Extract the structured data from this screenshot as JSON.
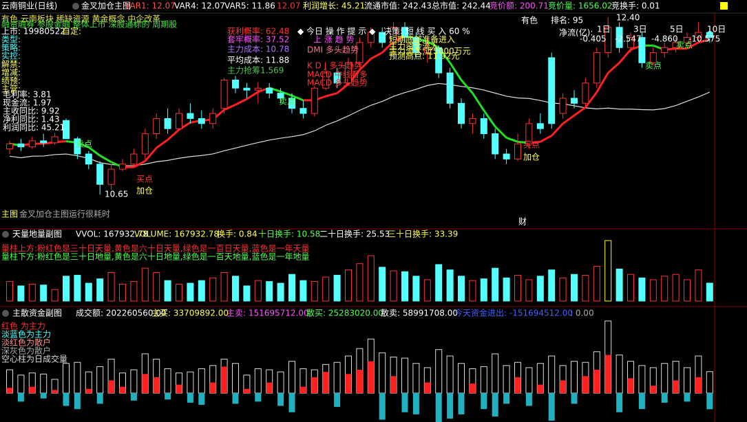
{
  "header": {
    "stock": "云南铜业(日线)",
    "indicator": "金叉加仓主图",
    "items": [
      "VAR1: 12.07",
      "VAR4: 12.07",
      "VAR5: 11.86",
      "12.07",
      "利润增长: 45.21",
      "流通市值: 242.43",
      "总市值: 242.44",
      "竞价额: 200.71",
      "竞价量: 1656.02",
      "竞换手: 0.01"
    ]
  },
  "main": {
    "tags": [
      "有色 云南板块 稀缺资源 黄金概念 中企改革",
      "融资融券 参股金融 整体上市 深股通标的 周期股"
    ],
    "info": [
      "上市: 19980522",
      "自定:",
      "类型:",
      "策略:",
      "实控:",
      "解禁:",
      "增减:",
      "绩预:",
      "主营:"
    ],
    "stats": [
      "毛利率: 3.81",
      "现金流: 1.97",
      "主收同比: 9.92",
      "净利同比: 1.43",
      "利润同比: 45.21"
    ],
    "probs": [
      "获利概率: 62.48",
      "套牢概率: 37.52",
      "主力成本: 10.78",
      "平均成本: 11.88",
      "主力抢筹1.569"
    ],
    "tip": "◆ 今日 操 作 提 示 ◆",
    "decision": "决策: 短 线 买 入 60 %",
    "signals": [
      "上 涨 趋 势",
      "DMI 多头趋势",
      "K D J 多头趋势",
      "MACD 中线看多",
      "MACD 多头趋势"
    ],
    "forecasts": [
      "短期底部准备进入",
      "主力资金流入",
      "主力流入:近5000万元",
      "预测高点: 11.92元"
    ],
    "sell": "卖点",
    "buy": "买点",
    "add": "加仓",
    "low_label": "10.65",
    "high_label": "12.40",
    "cai": "财",
    "note": "主图",
    "note_b": "金叉加仓主图运行很耗时",
    "sector": "有色",
    "rank": "排名: 95",
    "flow_title": "净流(亿):",
    "flow_periods": [
      "1日",
      "3日",
      "5日",
      "10日"
    ],
    "flow_values": [
      "-0.405",
      "-2.547",
      "-4.860",
      "-10.575"
    ]
  },
  "candles": {
    "open": [
      11.1,
      11.15,
      11.12,
      11.18,
      11.16,
      11.38,
      11.2,
      11.05,
      10.95,
      10.75,
      10.9,
      10.95,
      11.05,
      11.25,
      11.4,
      11.3,
      11.45,
      11.4,
      11.35,
      11.5,
      11.78,
      11.7,
      11.68,
      11.7,
      11.65,
      11.6,
      11.5,
      11.45,
      11.7,
      11.85,
      11.75,
      11.95,
      12.15,
      12.25,
      12.15,
      12.3,
      12.2,
      12.05,
      12.1,
      11.85,
      11.55,
      11.35,
      11.4,
      11.25,
      11.05,
      11.0,
      11.15,
      11.35,
      12.0,
      11.45,
      11.6,
      11.55,
      11.75,
      12.05,
      12.3,
      12.1,
      12.2,
      11.95,
      12.05,
      12.1,
      12.15,
      12.2,
      12.25
    ],
    "close": [
      11.15,
      11.12,
      11.18,
      11.16,
      11.22,
      11.2,
      11.05,
      10.95,
      10.75,
      10.9,
      10.95,
      11.05,
      11.25,
      11.4,
      11.3,
      11.45,
      11.4,
      11.35,
      11.45,
      11.78,
      11.7,
      11.68,
      11.7,
      11.65,
      11.6,
      11.5,
      11.45,
      11.7,
      11.85,
      11.75,
      11.95,
      12.15,
      12.25,
      12.15,
      12.3,
      12.2,
      12.05,
      12.1,
      11.85,
      11.55,
      11.35,
      11.4,
      11.25,
      11.05,
      11.0,
      11.15,
      11.35,
      11.3,
      11.35,
      11.6,
      11.55,
      11.75,
      12.05,
      12.3,
      12.1,
      12.2,
      11.95,
      12.05,
      12.1,
      12.15,
      12.2,
      12.25,
      12.2
    ],
    "high": [
      11.18,
      11.2,
      11.22,
      11.25,
      11.26,
      11.4,
      11.22,
      11.08,
      10.98,
      10.95,
      11.0,
      11.1,
      11.3,
      11.45,
      11.5,
      11.5,
      11.55,
      11.48,
      11.5,
      11.8,
      11.82,
      11.75,
      11.76,
      11.75,
      11.7,
      11.65,
      11.58,
      11.72,
      11.9,
      11.9,
      12.0,
      12.2,
      12.3,
      12.3,
      12.35,
      12.35,
      12.25,
      12.2,
      12.12,
      11.9,
      11.6,
      11.45,
      11.45,
      11.3,
      11.1,
      11.25,
      11.4,
      11.45,
      12.05,
      11.65,
      11.68,
      11.8,
      12.1,
      12.4,
      12.35,
      12.25,
      12.25,
      12.1,
      12.15,
      12.2,
      12.25,
      12.35,
      12.3
    ],
    "low": [
      11.05,
      11.08,
      11.1,
      11.12,
      11.14,
      11.2,
      11.0,
      10.9,
      10.65,
      10.7,
      10.88,
      10.92,
      11.0,
      11.2,
      11.25,
      11.28,
      11.35,
      11.3,
      11.3,
      11.45,
      11.65,
      11.6,
      11.55,
      11.6,
      11.55,
      11.45,
      11.4,
      11.42,
      11.68,
      11.7,
      11.72,
      11.9,
      12.1,
      12.1,
      12.1,
      12.15,
      12.0,
      11.95,
      11.8,
      11.5,
      11.3,
      11.25,
      11.2,
      11.0,
      10.95,
      10.98,
      11.1,
      11.25,
      11.3,
      11.4,
      11.5,
      11.5,
      11.7,
      12.0,
      12.05,
      12.05,
      11.9,
      11.92,
      12.0,
      12.05,
      12.1,
      12.15,
      12.15
    ]
  },
  "volume": {
    "title": "天量地量副图",
    "items": [
      "VVOL: 167932.78",
      "VOLUME: 167932.78",
      "换手: 0.84",
      "十日换手: 10.58",
      "二十日换手: 25.53",
      "三十日换手: 33.39"
    ],
    "legend": [
      "量柱上方:粉红色是三十日天量,黄色是六十日天量,绿色是一百日天量,蓝色是一年天量",
      "量柱下方:粉红色是三十日地量,黄色是六十日地量,绿色是一百天地量,蓝色是一年地量"
    ],
    "values": [
      183000,
      142000,
      158000,
      150000,
      108000,
      233000,
      242000,
      167000,
      208000,
      267000,
      158000,
      183000,
      308000,
      267000,
      192000,
      158000,
      167000,
      192000,
      217000,
      267000,
      233000,
      142000,
      192000,
      183000,
      167000,
      250000,
      192000,
      183000,
      225000,
      242000,
      292000,
      350000,
      425000,
      317000,
      283000,
      275000,
      233000,
      200000,
      342000,
      292000,
      233000,
      192000,
      208000,
      308000,
      217000,
      242000,
      200000,
      233000,
      292000,
      217000,
      250000,
      242000,
      325000,
      567000,
      300000,
      250000,
      217000,
      200000,
      233000,
      250000,
      200000,
      292000,
      167932.78
    ]
  },
  "money": {
    "title": "主散资金副图",
    "items": [
      "成交额: 202260560.00",
      "主买: 33709892.00",
      "主卖: 151695712.00",
      "散买: 25283020.00",
      "散卖: 58991708.00",
      "今天资金进出: -151694512.00",
      ": 0.00"
    ],
    "legend": [
      "红色 为主力",
      "淡蓝色为主力",
      "淡红色为散户",
      "深灰色为散户",
      "空心柱为日成交量"
    ],
    "turnover": [
      220000000.0,
      170000000.0,
      190000000.0,
      180000000.0,
      130000000.0,
      280000000.0,
      290000000.0,
      200000000.0,
      250000000.0,
      320000000.0,
      190000000.0,
      220000000.0,
      370000000.0,
      320000000.0,
      230000000.0,
      190000000.0,
      200000000.0,
      230000000.0,
      260000000.0,
      320000000.0,
      280000000.0,
      170000000.0,
      230000000.0,
      220000000.0,
      200000000.0,
      300000000.0,
      230000000.0,
      220000000.0,
      270000000.0,
      290000000.0,
      350000000.0,
      420000000.0,
      510000000.0,
      380000000.0,
      340000000.0,
      330000000.0,
      280000000.0,
      240000000.0,
      410000000.0,
      350000000.0,
      280000000.0,
      230000000.0,
      250000000.0,
      370000000.0,
      260000000.0,
      290000000.0,
      240000000.0,
      280000000.0,
      350000000.0,
      260000000.0,
      300000000.0,
      290000000.0,
      390000000.0,
      680000000.0,
      360000000.0,
      300000000.0,
      260000000.0,
      240000000.0,
      280000000.0,
      300000000.0,
      240000000.0,
      350000000.0,
      202260560
    ],
    "main_net": [
      50000000.0,
      -80000000.0,
      60000000.0,
      -50000000.0,
      30000000.0,
      -120000000.0,
      -150000000.0,
      40000000.0,
      -100000000.0,
      120000000.0,
      60000000.0,
      -70000000.0,
      180000000.0,
      150000000.0,
      -60000000.0,
      80000000.0,
      -90000000.0,
      -110000000.0,
      100000000.0,
      250000000.0,
      -100000000.0,
      40000000.0,
      -80000000.0,
      100000000.0,
      -120000000.0,
      -180000000.0,
      60000000.0,
      150000000.0,
      200000000.0,
      -130000000.0,
      180000000.0,
      220000000.0,
      300000000.0,
      -250000000.0,
      160000000.0,
      -180000000.0,
      -200000000.0,
      100000000.0,
      -280000000.0,
      -240000000.0,
      -200000000.0,
      90000000.0,
      -150000000.0,
      -220000000.0,
      -100000000.0,
      150000000.0,
      -120000000.0,
      80000000.0,
      -260000000.0,
      120000000.0,
      -100000000.0,
      160000000.0,
      220000000.0,
      360000000.0,
      -180000000.0,
      140000000.0,
      -150000000.0,
      70000000.0,
      -90000000.0,
      120000000.0,
      -80000000.0,
      150000000.0,
      -151694512
    ]
  }
}
